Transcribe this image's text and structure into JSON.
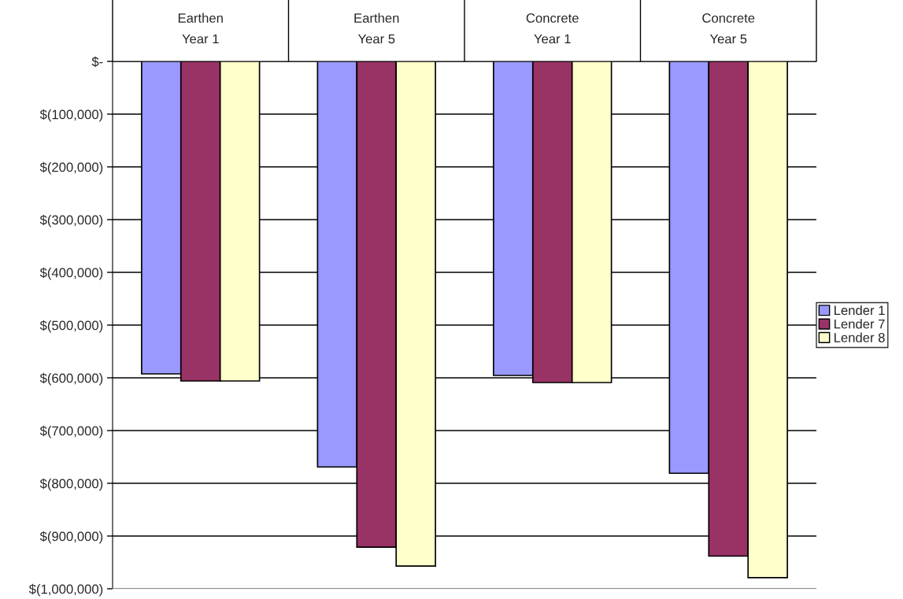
{
  "chart_data": {
    "type": "bar",
    "categories": [
      "Earthen\nYear 1",
      "Earthen\nYear 5",
      "Concrete\nYear 1",
      "Concrete\nYear 5"
    ],
    "series": [
      {
        "name": "Lender 1",
        "color": "#9999ff",
        "values": [
          -592500,
          -769000,
          -595500,
          -781000
        ]
      },
      {
        "name": "Lender 7",
        "color": "#993366",
        "values": [
          -606000,
          -921000,
          -609000,
          -938000
        ]
      },
      {
        "name": "Lender 8",
        "color": "#ffffcc",
        "values": [
          -606000,
          -957000,
          -609000,
          -979000
        ]
      }
    ],
    "ylim": [
      -1000000,
      0
    ],
    "yticks": [
      {
        "value": 0,
        "label": "$-"
      },
      {
        "value": -100000,
        "label": "$(100,000)"
      },
      {
        "value": -200000,
        "label": "$(200,000)"
      },
      {
        "value": -300000,
        "label": "$(300,000)"
      },
      {
        "value": -400000,
        "label": "$(400,000)"
      },
      {
        "value": -500000,
        "label": "$(500,000)"
      },
      {
        "value": -600000,
        "label": "$(600,000)"
      },
      {
        "value": -700000,
        "label": "$(700,000)"
      },
      {
        "value": -800000,
        "label": "$(800,000)"
      },
      {
        "value": -900000,
        "label": "$(900,000)"
      },
      {
        "value": -1000000,
        "label": "$(1,000,000)"
      }
    ],
    "grid": "y",
    "legend": "right"
  }
}
